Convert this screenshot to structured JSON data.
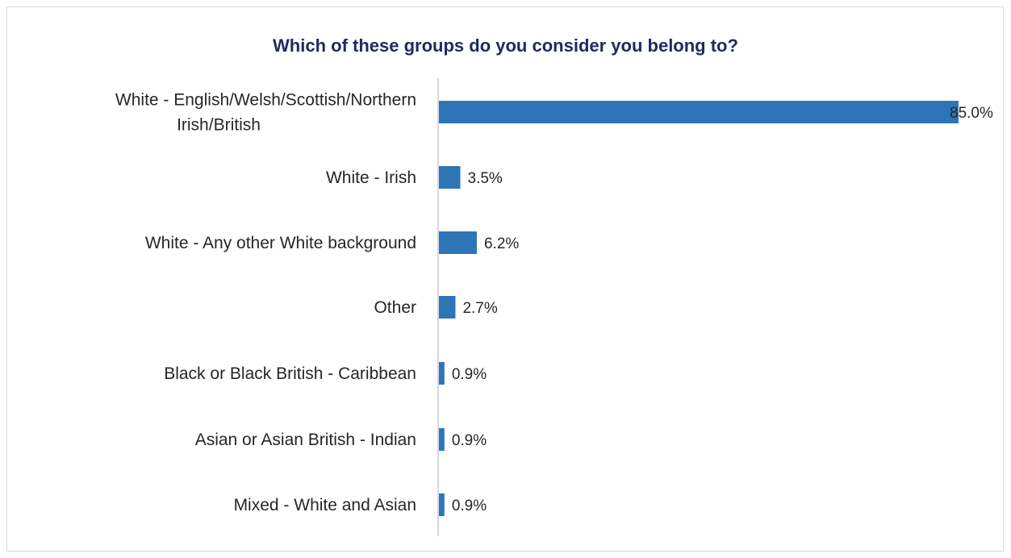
{
  "chart_data": {
    "type": "bar",
    "orientation": "horizontal",
    "title": "Which of these groups do you consider you belong to?",
    "categories": [
      [
        "White - English/Welsh/Scottish/Northern",
        "Irish/British"
      ],
      [
        "White - Irish"
      ],
      [
        "White - Any other White background"
      ],
      [
        "Other"
      ],
      [
        "Black or Black British - Caribbean"
      ],
      [
        "Asian or Asian British - Indian"
      ],
      [
        "Mixed - White and Asian"
      ]
    ],
    "values": [
      85.0,
      3.5,
      6.2,
      2.7,
      0.9,
      0.9,
      0.9
    ],
    "value_labels": [
      "85.0%",
      "3.5%",
      "6.2%",
      "2.7%",
      "0.9%",
      "0.9%",
      "0.9%"
    ],
    "unit": "%",
    "xlim": [
      0,
      85
    ],
    "grid": false,
    "legend": "none",
    "colors": {
      "bar": "#2e75b6",
      "axis": "#c9c9d9",
      "title": "#1f2a5c",
      "text": "#262626"
    }
  }
}
